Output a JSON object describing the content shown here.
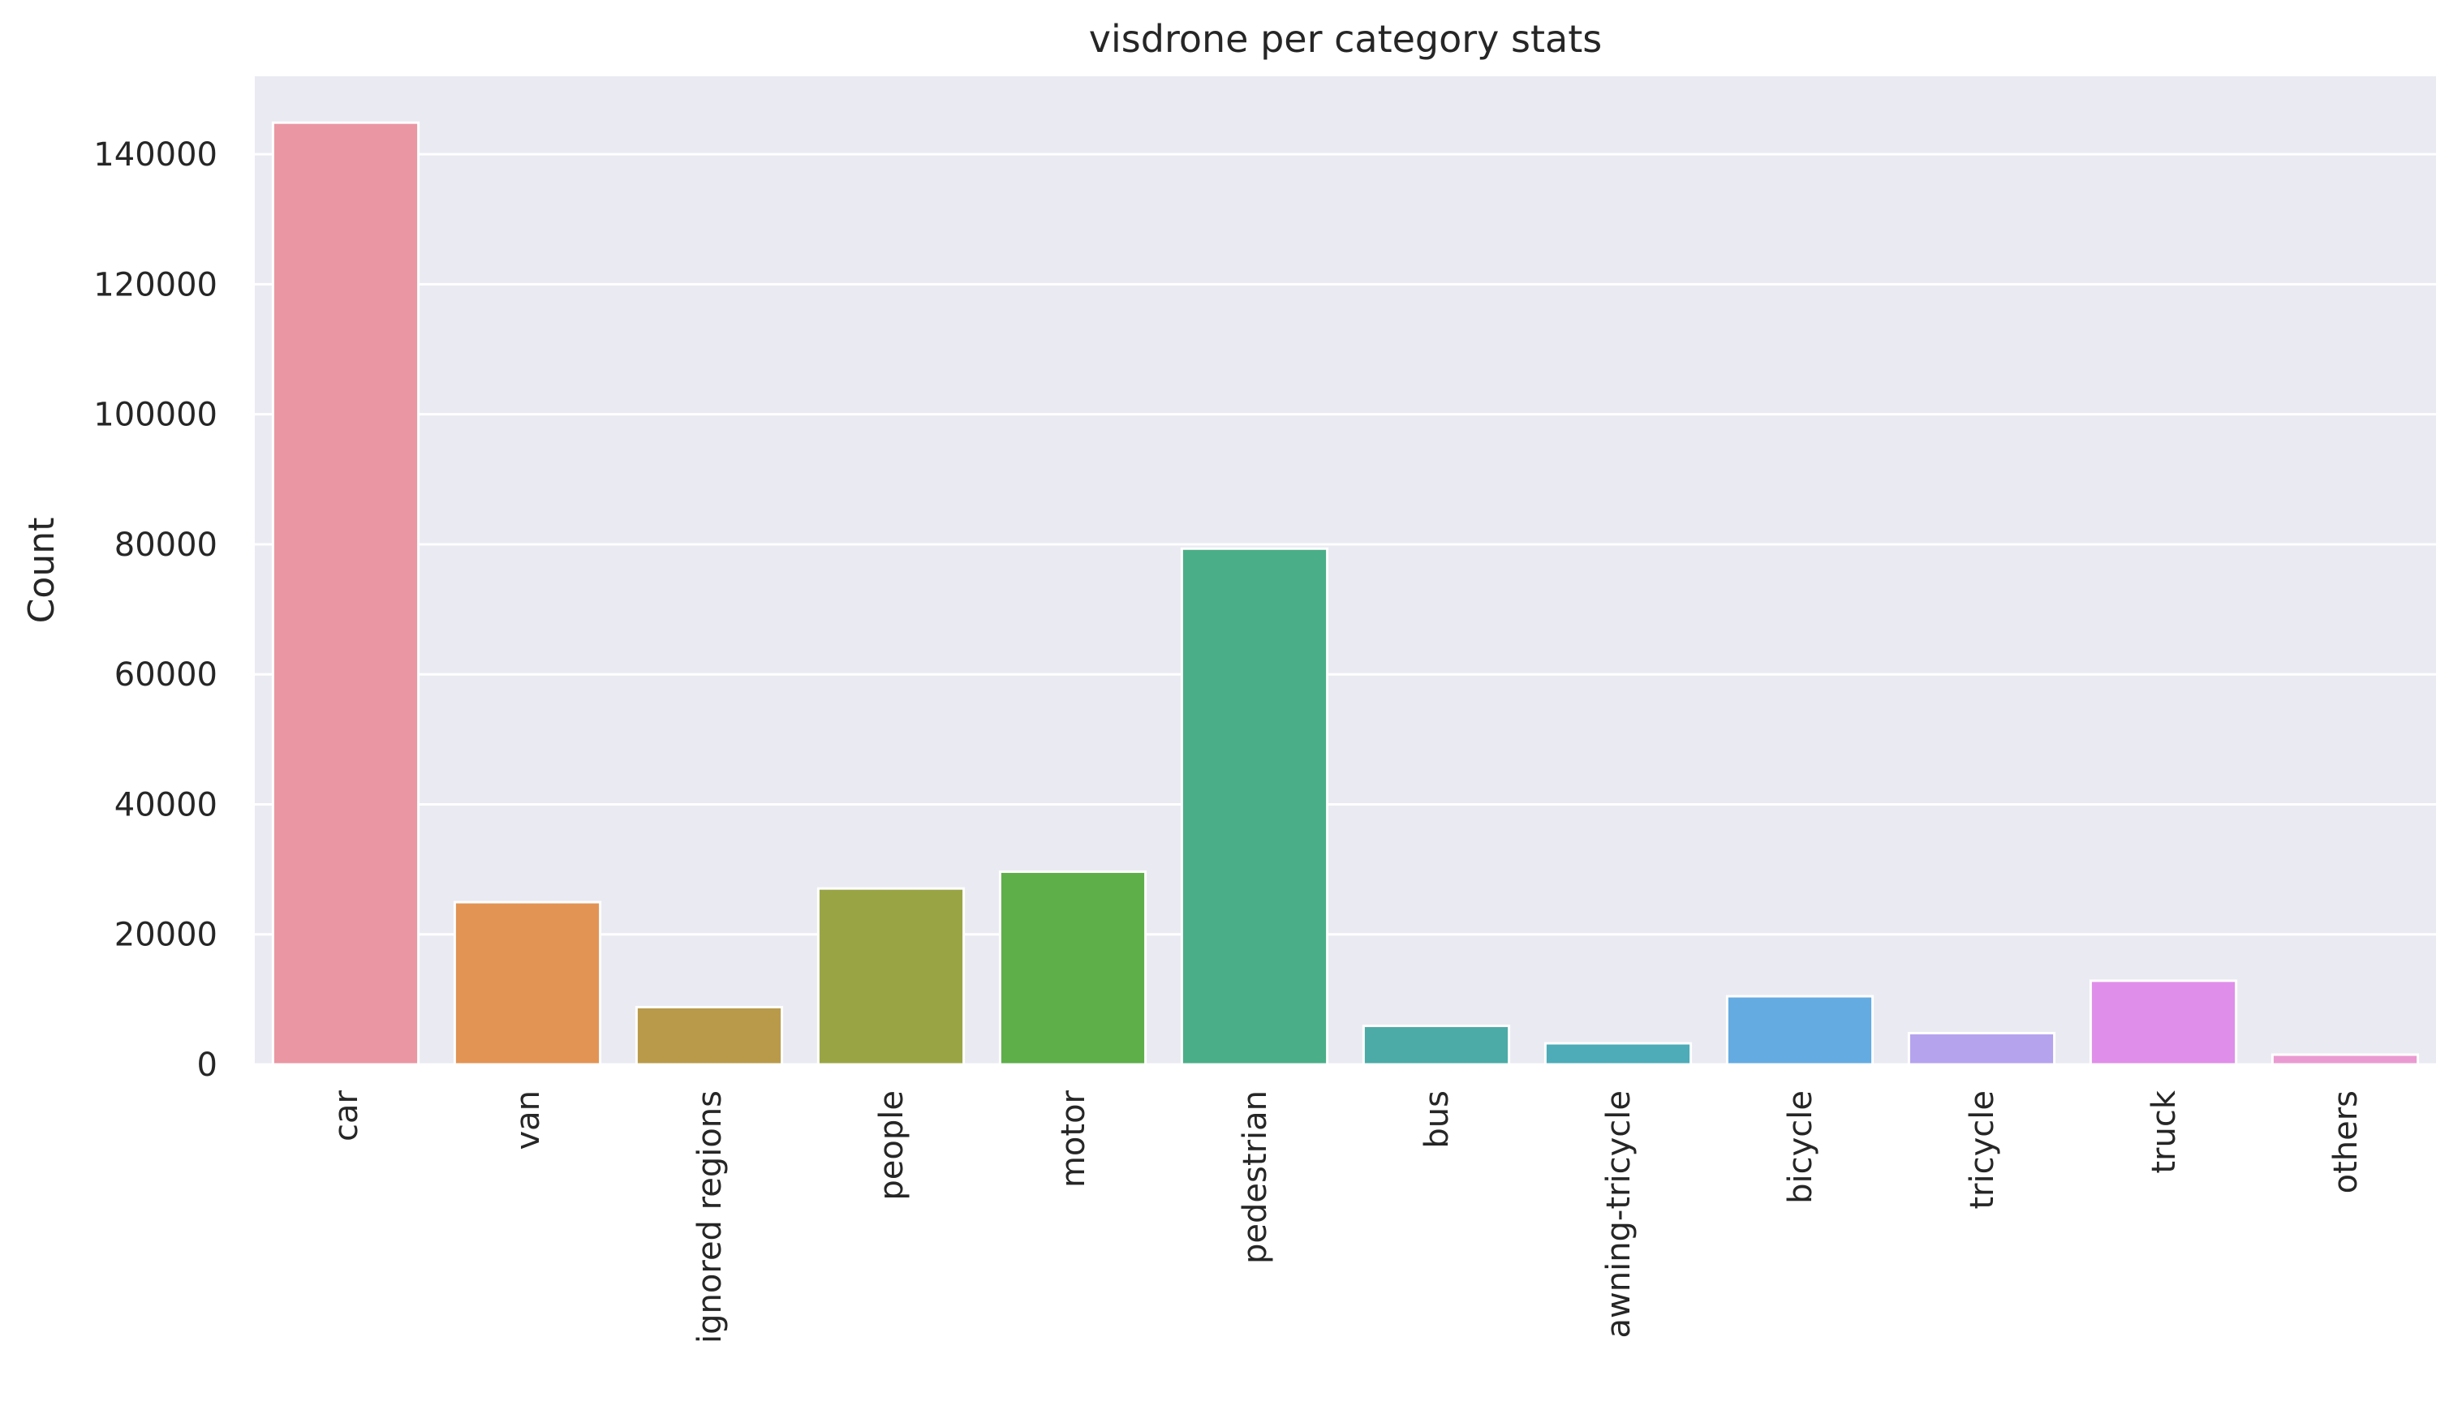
{
  "chart_data": {
    "type": "bar",
    "title": "visdrone per category stats",
    "xlabel": "",
    "ylabel": "Count",
    "categories": [
      "car",
      "van",
      "ignored regions",
      "people",
      "motor",
      "pedestrian",
      "bus",
      "awning-tricycle",
      "bicycle",
      "tricycle",
      "truck",
      "others"
    ],
    "values": [
      144865,
      24956,
      8813,
      27059,
      29647,
      79337,
      5926,
      3246,
      10480,
      4812,
      12871,
      1502
    ],
    "colors": [
      "#ea96a3",
      "#e29455",
      "#b99a4a",
      "#99a545",
      "#5eae4a",
      "#4aae89",
      "#4caba6",
      "#4eabb8",
      "#64abe1",
      "#b5a3ee",
      "#df8fe9",
      "#e99bd1"
    ],
    "yticks": [
      0,
      20000,
      40000,
      60000,
      80000,
      100000,
      120000,
      140000
    ],
    "ylim": [
      0,
      152000
    ],
    "grid": true,
    "background": "#eaeaf2"
  }
}
